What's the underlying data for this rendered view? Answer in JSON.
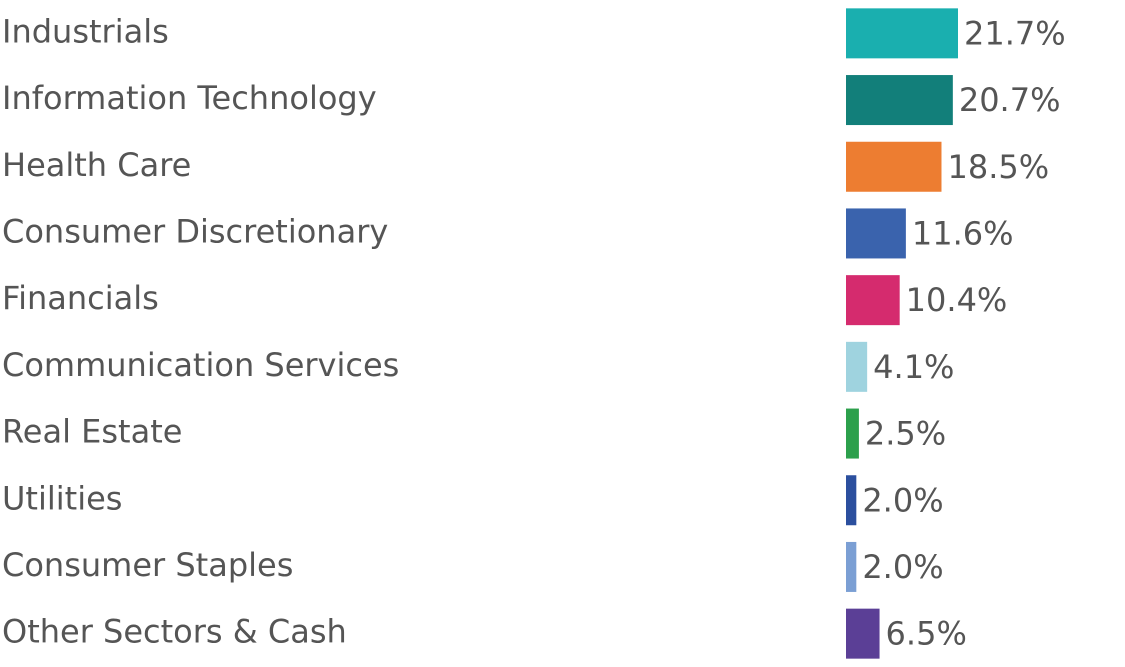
{
  "chart_data": {
    "type": "hbar",
    "categories": [
      "Industrials",
      "Information Technology",
      "Health Care",
      "Consumer Discretionary",
      "Financials",
      "Communication Services",
      "Real Estate",
      "Utilities",
      "Consumer Staples",
      "Other Sectors & Cash"
    ],
    "values": [
      21.7,
      20.7,
      18.5,
      11.6,
      10.4,
      4.1,
      2.5,
      2.0,
      2.0,
      6.5
    ],
    "value_labels": [
      "21.7%",
      "20.7%",
      "18.5%",
      "11.6%",
      "10.4%",
      "4.1%",
      "2.5%",
      "2.0%",
      "2.0%",
      "6.5%"
    ],
    "colors": [
      "#1aafaf",
      "#127f7a",
      "#ed7d31",
      "#3a63ad",
      "#d52b6e",
      "#9fd3df",
      "#2ca04c",
      "#2b4f9e",
      "#7b9fd4",
      "#5b3f96"
    ]
  }
}
